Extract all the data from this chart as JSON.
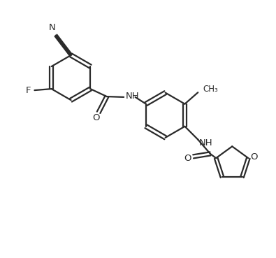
{
  "bg_color": "#ffffff",
  "line_color": "#2a2a2a",
  "line_width": 1.6,
  "font_size": 9.5,
  "figsize": [
    3.95,
    3.69
  ],
  "dpi": 100,
  "xlim": [
    0,
    10
  ],
  "ylim": [
    0,
    9.35
  ]
}
